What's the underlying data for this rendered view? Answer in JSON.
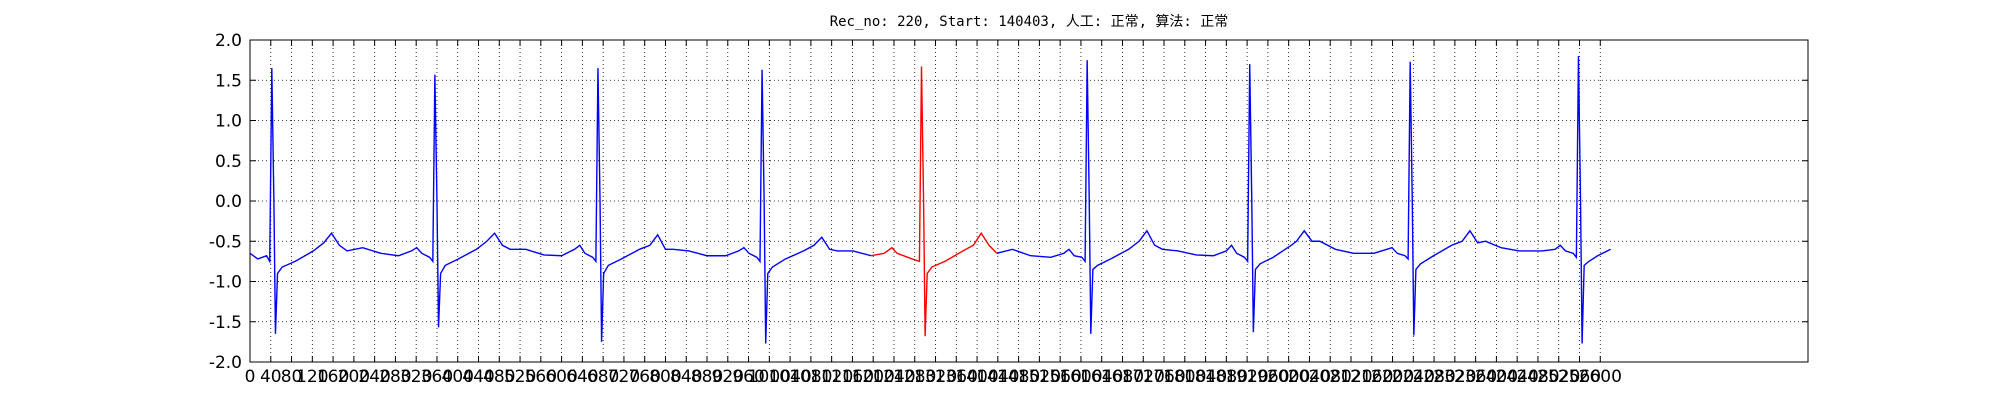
{
  "chart_data": {
    "type": "line",
    "title": "Rec_no: 220, Start: 140403, 人工: 正常, 算法: 正常",
    "xlim": [
      0,
      3000
    ],
    "xticks": [
      0,
      40,
      80,
      120,
      160,
      200,
      240,
      280,
      320,
      360,
      400,
      440,
      480,
      520,
      560,
      600,
      640,
      680,
      720,
      760,
      800,
      840,
      880,
      920,
      960,
      1000,
      1040,
      1080,
      1120,
      1160,
      1200,
      1240,
      1280,
      1320,
      1360,
      1400,
      1440,
      1480,
      1520,
      1560,
      1600,
      1640,
      1680,
      1720,
      1760,
      1800,
      1840,
      1880,
      1920,
      1960,
      2000,
      2040,
      2080,
      2120,
      2160,
      2200,
      2240,
      2280,
      2320,
      2360,
      2400,
      2440,
      2480,
      2520,
      2560,
      2600
    ],
    "ylim": [
      -2,
      2
    ],
    "yticks": [
      {
        "value": -2,
        "label": "-2.0"
      },
      -1.5,
      {
        "value": -1,
        "label": "-1.0"
      },
      -0.5,
      {
        "value": 0,
        "label": "0.0"
      },
      0.5,
      {
        "value": 1,
        "label": "1.0"
      },
      1.5,
      {
        "value": 2,
        "label": "2.0"
      }
    ],
    "grid": true,
    "series": [
      {
        "color": "#0000ff",
        "x": [
          0,
          15,
          32,
          38,
          42,
          46,
          49,
          53,
          62,
          87,
          122,
          142,
          157,
          172,
          187,
          217,
          252,
          286,
          311,
          321,
          331,
          346,
          352,
          356,
          360,
          363,
          367,
          376,
          401,
          436,
          456,
          471,
          486,
          501,
          531,
          566,
          600,
          625,
          635,
          645,
          660,
          666,
          670,
          674,
          677,
          681,
          690,
          715,
          750,
          770,
          785,
          800,
          815,
          845,
          880,
          916,
          941,
          951,
          961,
          976,
          982,
          986,
          990,
          993,
          997,
          1006,
          1031,
          1066,
          1086,
          1101,
          1116,
          1131,
          1161,
          1196,
          1300,
          1438,
          1468,
          1503,
          1542,
          1567,
          1577,
          1587,
          1602,
          1608,
          1612,
          1616,
          1619,
          1623,
          1632,
          1657,
          1692,
          1712,
          1727,
          1742,
          1757,
          1787,
          1822,
          1855,
          1880,
          1890,
          1900,
          1915,
          1921,
          1925,
          1929,
          1932,
          1936,
          1945,
          1970,
          2005,
          2015,
          2030,
          2045,
          2060,
          2090,
          2125,
          2164,
          2189,
          2199,
          2209,
          2224,
          2230,
          2234,
          2238,
          2241,
          2245,
          2254,
          2279,
          2314,
          2334,
          2349,
          2364,
          2379,
          2409,
          2444,
          2488,
          2513,
          2523,
          2533,
          2548,
          2554,
          2558,
          2562,
          2565,
          2569,
          2578,
          2595,
          2620
        ],
        "values": [
          -0.65,
          -0.72,
          -0.68,
          -0.75,
          1.65,
          0,
          -1.65,
          -0.9,
          -0.82,
          -0.75,
          -0.62,
          -0.52,
          -0.4,
          -0.55,
          -0.62,
          -0.58,
          -0.65,
          -0.68,
          -0.62,
          -0.58,
          -0.65,
          -0.7,
          -0.75,
          1.57,
          0,
          -1.57,
          -0.9,
          -0.8,
          -0.72,
          -0.6,
          -0.5,
          -0.4,
          -0.55,
          -0.6,
          -0.6,
          -0.67,
          -0.68,
          -0.6,
          -0.55,
          -0.65,
          -0.7,
          -0.75,
          1.65,
          0,
          -1.75,
          -0.9,
          -0.8,
          -0.72,
          -0.6,
          -0.55,
          -0.42,
          -0.6,
          -0.6,
          -0.62,
          -0.68,
          -0.68,
          -0.62,
          -0.58,
          -0.65,
          -0.7,
          -0.75,
          1.63,
          0,
          -1.77,
          -0.9,
          -0.82,
          -0.72,
          -0.62,
          -0.55,
          -0.45,
          -0.6,
          -0.62,
          -0.62,
          -0.68,
          null,
          -0.65,
          -0.6,
          -0.68,
          -0.7,
          -0.65,
          -0.6,
          -0.68,
          -0.7,
          -0.75,
          1.75,
          0,
          -1.65,
          -0.85,
          -0.8,
          -0.72,
          -0.6,
          -0.5,
          -0.37,
          -0.55,
          -0.6,
          -0.62,
          -0.67,
          -0.68,
          -0.62,
          -0.55,
          -0.65,
          -0.7,
          -0.75,
          1.7,
          0,
          -1.63,
          -0.85,
          -0.78,
          -0.7,
          -0.55,
          -0.5,
          -0.37,
          -0.5,
          -0.5,
          -0.6,
          -0.65,
          -0.65,
          -0.6,
          -0.58,
          -0.65,
          -0.68,
          -0.72,
          1.73,
          0,
          -1.67,
          -0.85,
          -0.78,
          -0.68,
          -0.55,
          -0.5,
          -0.37,
          -0.52,
          -0.5,
          -0.58,
          -0.62,
          -0.62,
          -0.6,
          -0.55,
          -0.62,
          -0.65,
          -0.7,
          1.8,
          0,
          -1.77,
          -0.8,
          -0.75,
          -0.68,
          -0.6
        ]
      },
      {
        "color": "#ff0000",
        "x": [
          1196,
          1221,
          1236,
          1246,
          1275,
          1289,
          1293,
          1297,
          1300,
          1304,
          1313,
          1338,
          1373,
          1393,
          1408,
          1423,
          1438
        ],
        "values": [
          -0.68,
          -0.65,
          -0.58,
          -0.65,
          -0.72,
          -0.75,
          1.67,
          0,
          -1.68,
          -0.9,
          -0.82,
          -0.75,
          -0.62,
          -0.55,
          -0.4,
          -0.55,
          -0.65
        ]
      }
    ]
  }
}
